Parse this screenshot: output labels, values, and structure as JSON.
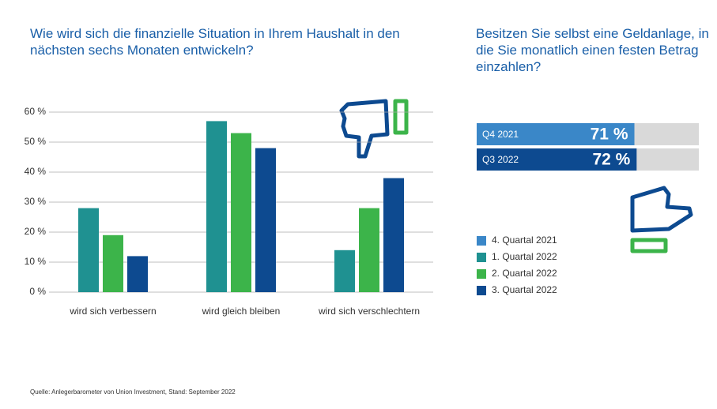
{
  "chart_data": [
    {
      "type": "bar",
      "title": "Wie wird sich die finanzielle Situation in Ihrem Haushalt in den nächsten sechs Monaten entwickeln?",
      "categories": [
        "wird sich verbessern",
        "wird gleich bleiben",
        "wird sich verschlechtern"
      ],
      "series": [
        {
          "name": "4. Quartal 2021",
          "color": "#3a87c8",
          "values": [
            null,
            null,
            null
          ]
        },
        {
          "name": "1. Quartal 2022",
          "color": "#1f9191",
          "values": [
            28,
            57,
            14
          ]
        },
        {
          "name": "2. Quartal 2022",
          "color": "#3cb44a",
          "values": [
            19,
            53,
            28
          ]
        },
        {
          "name": "3. Quartal 2022",
          "color": "#0d4a90",
          "values": [
            12,
            48,
            38
          ]
        }
      ],
      "ylim": [
        0,
        60
      ],
      "yticks": [
        {
          "value": 0,
          "label": "0 %"
        },
        {
          "value": 10,
          "label": "10 %"
        },
        {
          "value": 20,
          "label": "20 %"
        },
        {
          "value": 30,
          "label": "30 %"
        },
        {
          "value": 40,
          "label": "40 %"
        },
        {
          "value": 50,
          "label": "50 %"
        },
        {
          "value": 60,
          "label": "60 %"
        }
      ],
      "grid": true
    },
    {
      "type": "hbar",
      "title": "Besitzen Sie selbst eine Geldanlage, in die Sie monatlich einen festen Betrag einzahlen?",
      "categories": [
        "Q4 2021",
        "Q3 2022"
      ],
      "values": [
        71,
        72
      ],
      "value_labels": [
        "71 %",
        "72 %"
      ],
      "colors": [
        "#3a87c8",
        "#0d4a90"
      ],
      "xlim": [
        0,
        100
      ]
    }
  ],
  "source": "Quelle: Anlegerbarometer von Union Investment, Stand: September 2022"
}
